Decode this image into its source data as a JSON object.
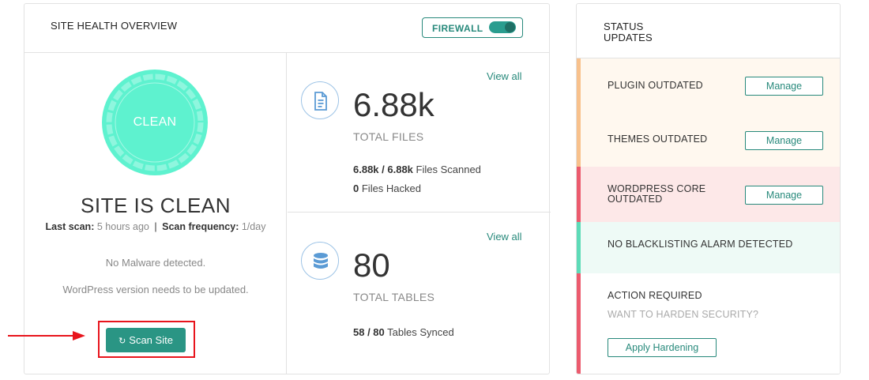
{
  "health": {
    "title": "SITE HEALTH OVERVIEW",
    "firewall_label": "FIREWALL",
    "firewall_on": true,
    "status_ring_text": "CLEAN",
    "status_title": "SITE IS CLEAN",
    "last_scan_label": "Last scan:",
    "last_scan_value": "5 hours ago",
    "separator": "|",
    "scan_frequency_label": "Scan frequency:",
    "scan_frequency_value": "1/day",
    "message_malware": "No Malware detected.",
    "message_wordpress": "WordPress version needs to be updated.",
    "scan_button_label": "Scan Site",
    "colors": {
      "accent": "#27897b",
      "ring": "#5ef2cf",
      "alert": "#e8141c"
    }
  },
  "files": {
    "view_all": "View all",
    "icon": "document-icon",
    "value": "6.88k",
    "label": "TOTAL FILES",
    "scanned_count": "6.88k / 6.88k",
    "scanned_text": "Files Scanned",
    "hacked_count": "0",
    "hacked_text": "Files Hacked"
  },
  "tables": {
    "view_all": "View all",
    "icon": "database-icon",
    "value": "80",
    "label": "TOTAL TABLES",
    "synced_count": "58 / 80",
    "synced_text": "Tables Synced"
  },
  "status": {
    "title": "STATUS UPDATES",
    "plugin_label": "PLUGIN OUTDATED",
    "plugin_button": "Manage",
    "themes_label": "THEMES OUTDATED",
    "themes_button": "Manage",
    "core_label": "WORDPRESS CORE OUTDATED",
    "core_button": "Manage",
    "blacklist_label": "NO BLACKLISTING ALARM DETECTED",
    "action_label": "ACTION REQUIRED",
    "action_sub": "WANT TO HARDEN SECURITY?",
    "action_button": "Apply Hardening",
    "colors": {
      "warning_bar": "#f8c18c",
      "warning_bg": "#fff8ef",
      "danger_bar": "#ec5b6e",
      "danger_bg": "#fde8e8",
      "ok_bar": "#5ddbb8",
      "ok_bg": "#eefaf6"
    }
  }
}
